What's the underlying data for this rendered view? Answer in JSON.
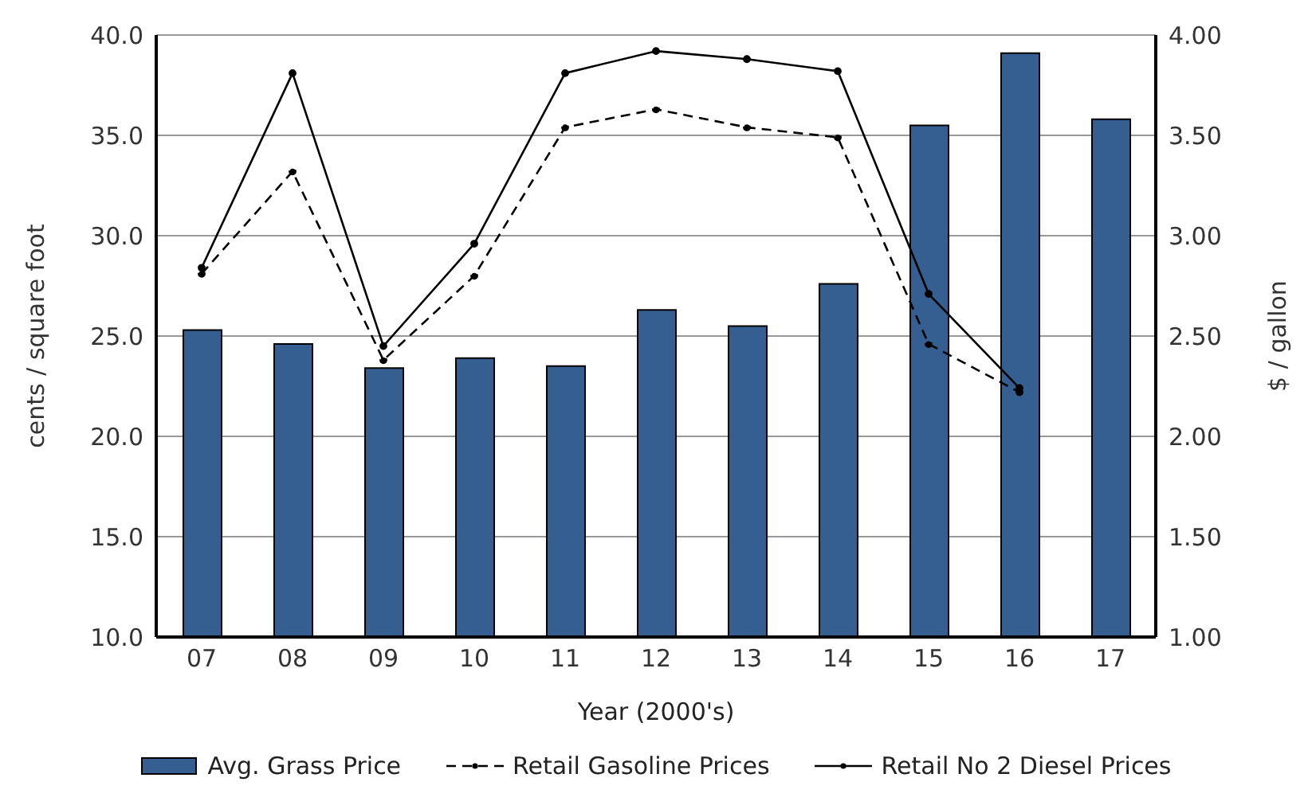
{
  "chart_data": {
    "type": "bar",
    "xlabel": "Year (2000's)",
    "ylabel": "cents / square foot",
    "y2label": "$ / gallon",
    "categories": [
      "07",
      "08",
      "09",
      "10",
      "11",
      "12",
      "13",
      "14",
      "15",
      "16",
      "17"
    ],
    "series": [
      {
        "name": "Avg. Grass Price",
        "color": "#355f91",
        "values": [
          25.3,
          24.6,
          23.4,
          23.9,
          23.5,
          26.3,
          25.5,
          27.6,
          35.5,
          39.1,
          35.8
        ]
      },
      {
        "name": "Retail Gasoline Prices",
        "type": "line",
        "axis": "y2",
        "color": "#000000",
        "line_style": "dashed",
        "marker": "circle",
        "values": [
          2.81,
          3.32,
          2.38,
          2.8,
          3.54,
          3.63,
          3.54,
          3.49,
          2.46,
          2.22,
          null
        ]
      },
      {
        "name": "Retail No 2 Diesel Prices",
        "type": "line",
        "axis": "y2",
        "color": "#000000",
        "line_style": "solid",
        "marker": "circle",
        "values": [
          2.84,
          3.81,
          2.45,
          2.96,
          3.81,
          3.92,
          3.88,
          3.82,
          2.71,
          2.24,
          null
        ]
      }
    ],
    "ylim": [
      10,
      40
    ],
    "yticks": [
      {
        "value": 10,
        "label": "10.0"
      },
      {
        "value": 15,
        "label": "15.0"
      },
      {
        "value": 20,
        "label": "20.0"
      },
      {
        "value": 25,
        "label": "25.0"
      },
      {
        "value": 30,
        "label": "30.0"
      },
      {
        "value": 35,
        "label": "35.0"
      },
      {
        "value": 40,
        "label": "40.0"
      }
    ],
    "y2lim": [
      1,
      4
    ],
    "y2ticks": [
      {
        "value": 1,
        "label": "1.00"
      },
      {
        "value": 1.5,
        "label": "1.50"
      },
      {
        "value": 2,
        "label": "2.00"
      },
      {
        "value": 2.5,
        "label": "2.50"
      },
      {
        "value": 3,
        "label": "3.00"
      },
      {
        "value": 3.5,
        "label": "3.50"
      },
      {
        "value": 4,
        "label": "4.00"
      }
    ],
    "grid": "y",
    "legend": "bottom"
  }
}
